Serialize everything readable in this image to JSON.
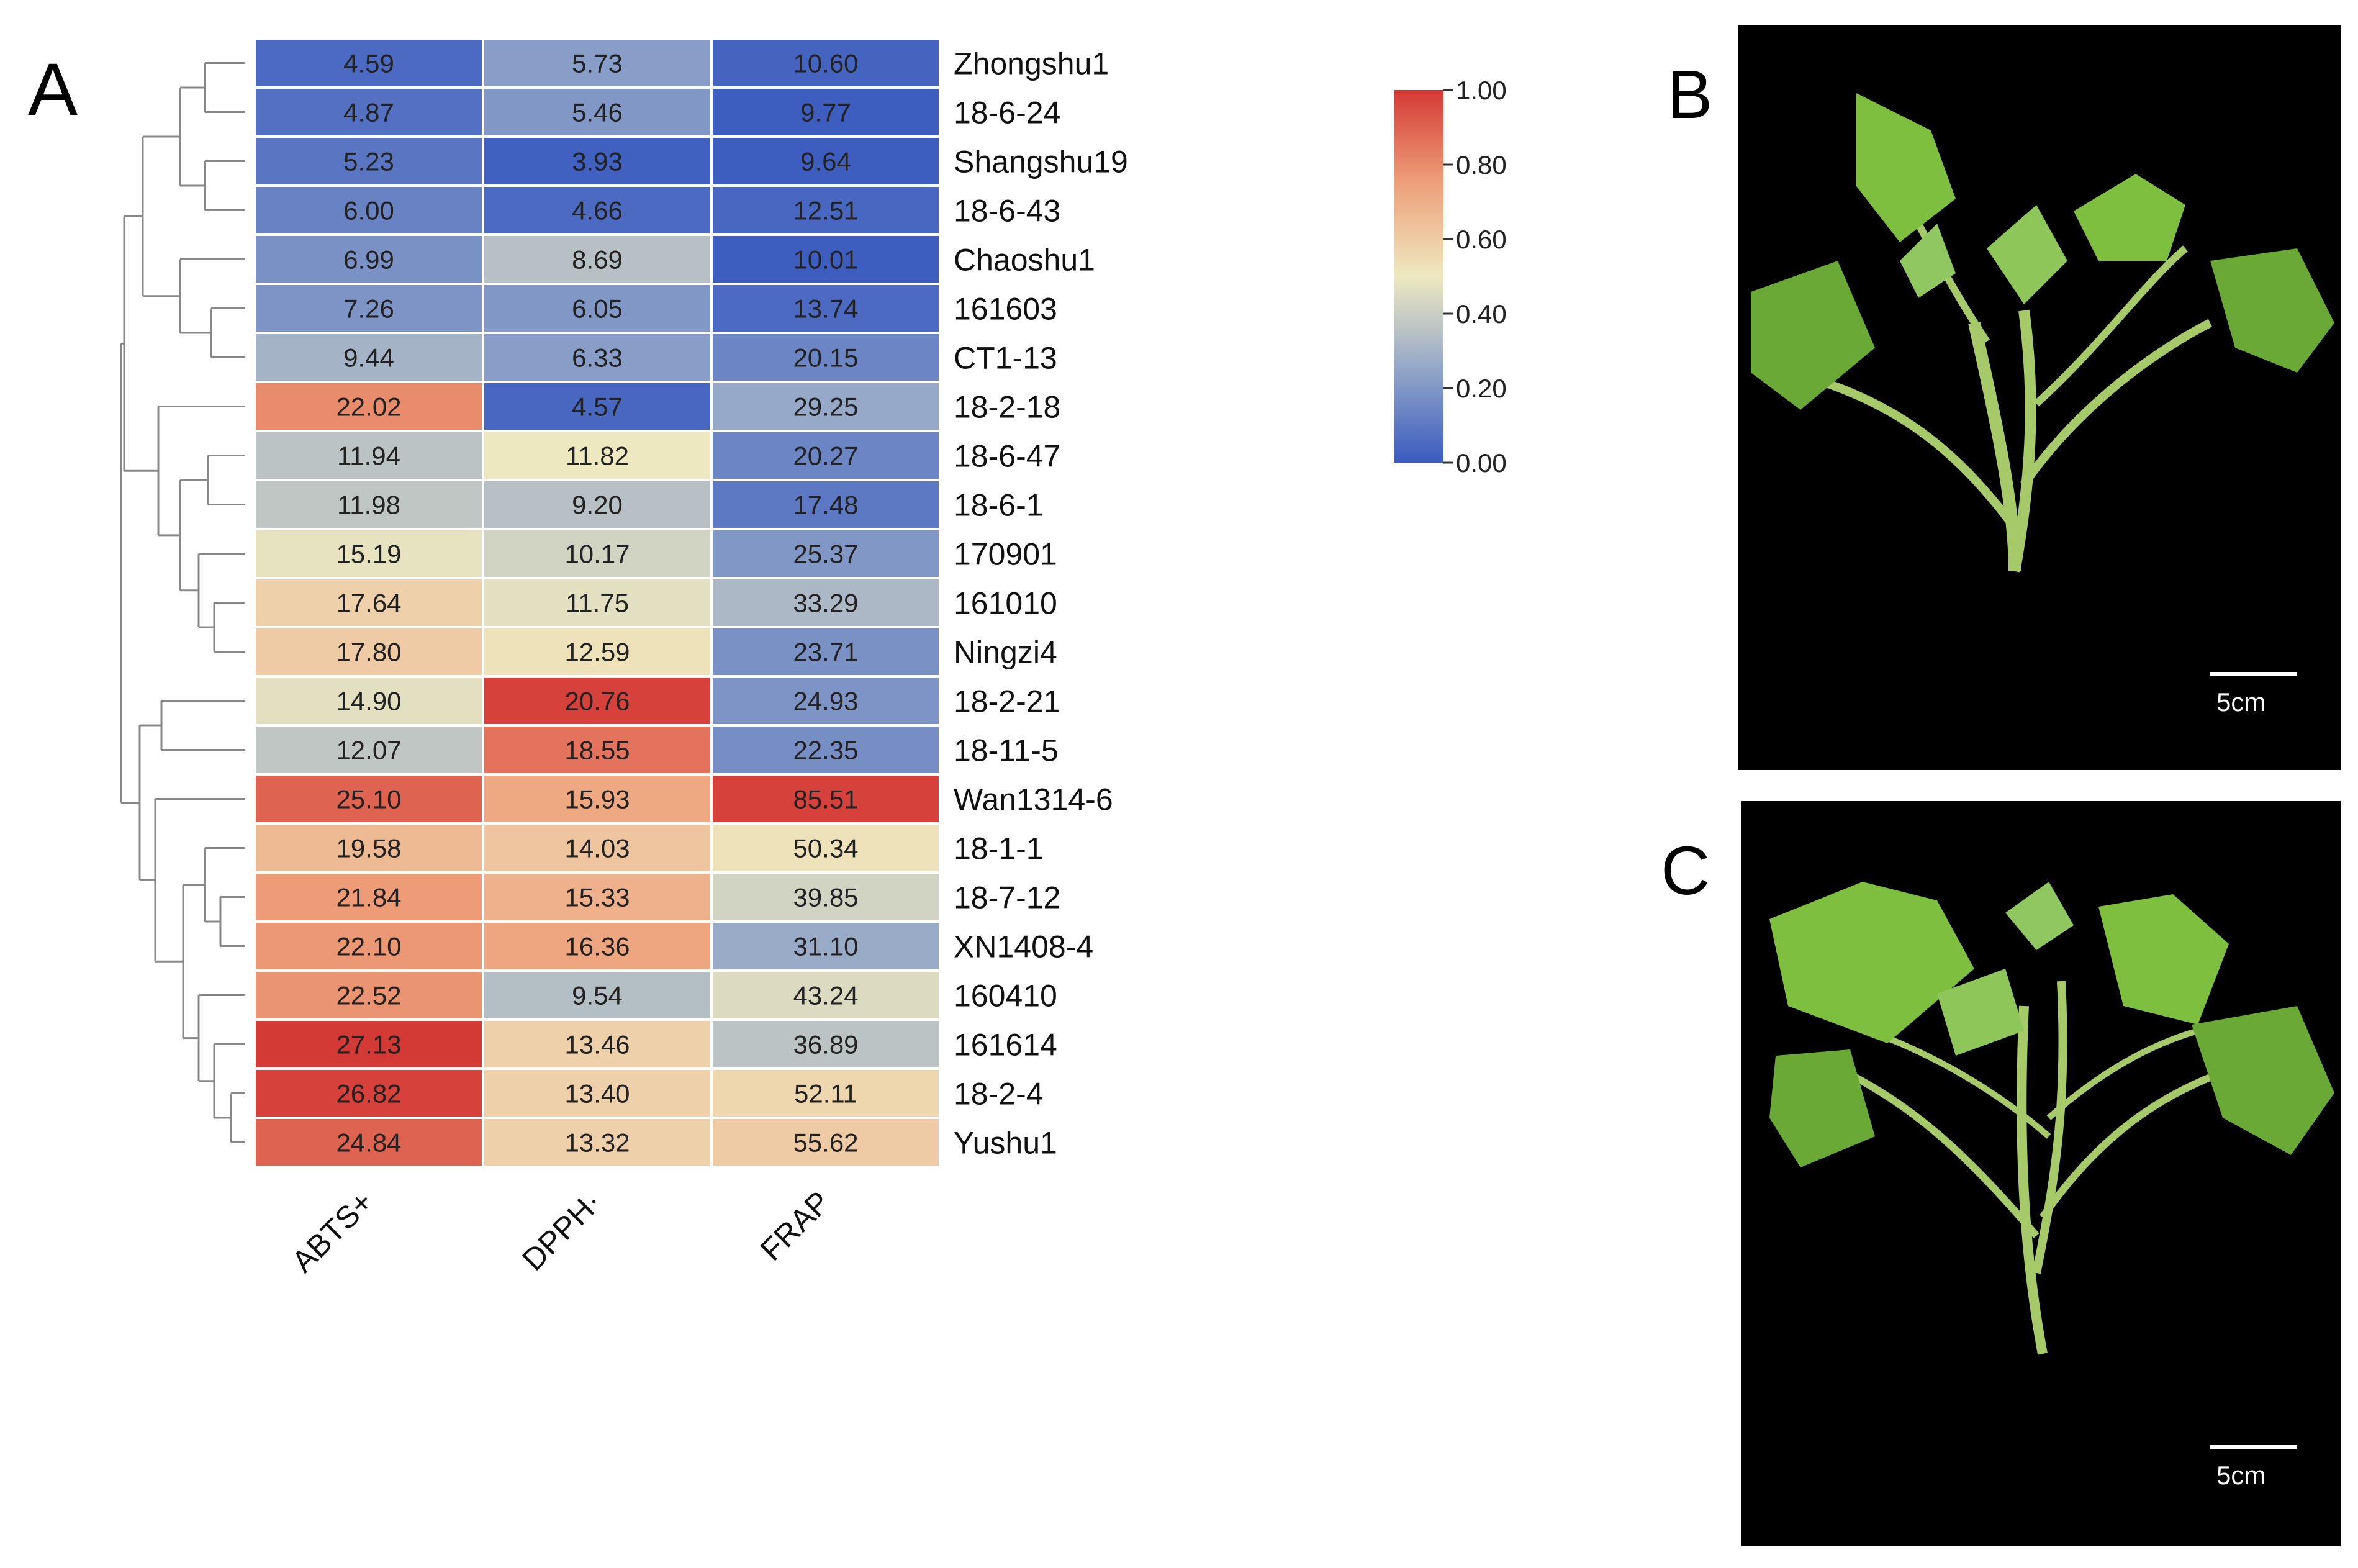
{
  "panels": {
    "a": "A",
    "b": "B",
    "c": "C"
  },
  "colors": {
    "low": "#3a5bbf",
    "mid_low": "#93a6c8",
    "mid": "#eee8c0",
    "mid_high": "#eea07a",
    "high": "#d43a35",
    "grid": "#ffffff",
    "photo_bg": "#000000",
    "leaf": "#7fbf3f",
    "stem": "#a6c96a"
  },
  "chart_data": {
    "type": "heatmap",
    "title": "",
    "columns": [
      "ABTS+",
      "DPPH·",
      "FRAP"
    ],
    "rows": [
      "Zhongshu1",
      "18-6-24",
      "Shangshu19",
      "18-6-43",
      "Chaoshu1",
      "161603",
      "CT1-13",
      "18-2-18",
      "18-6-47",
      "18-6-1",
      "170901",
      "161010",
      "Ningzi4",
      "18-2-21",
      "18-11-5",
      "Wan1314-6",
      "18-1-1",
      "18-7-12",
      "XN1408-4",
      "160410",
      "161614",
      "18-2-4",
      "Yushu1"
    ],
    "labels": [
      [
        "4.59",
        "5.73",
        "10.60"
      ],
      [
        "4.87",
        "5.46",
        "9.77"
      ],
      [
        "5.23",
        "3.93",
        "9.64"
      ],
      [
        "6.00",
        "4.66",
        "12.51"
      ],
      [
        "6.99",
        "8.69",
        "10.01"
      ],
      [
        "7.26",
        "6.05",
        "13.74"
      ],
      [
        "9.44",
        "6.33",
        "20.15"
      ],
      [
        "22.02",
        "4.57",
        "29.25"
      ],
      [
        "11.94",
        "11.82",
        "20.27"
      ],
      [
        "11.98",
        "9.20",
        "17.48"
      ],
      [
        "15.19",
        "10.17",
        "25.37"
      ],
      [
        "17.64",
        "11.75",
        "33.29"
      ],
      [
        "17.80",
        "12.59",
        "23.71"
      ],
      [
        "14.90",
        "20.76",
        "24.93"
      ],
      [
        "12.07",
        "18.55",
        "22.35"
      ],
      [
        "25.10",
        "15.93",
        "85.51"
      ],
      [
        "19.58",
        "14.03",
        "50.34"
      ],
      [
        "21.84",
        "15.33",
        "39.85"
      ],
      [
        "22.10",
        "16.36",
        "31.10"
      ],
      [
        "22.52",
        "9.54",
        "43.24"
      ],
      [
        "27.13",
        "13.46",
        "36.89"
      ],
      [
        "26.82",
        "13.40",
        "52.11"
      ],
      [
        "24.84",
        "13.32",
        "55.62"
      ]
    ],
    "color_values": [
      [
        0.05,
        0.22,
        0.03
      ],
      [
        0.07,
        0.2,
        0.01
      ],
      [
        0.09,
        0.02,
        0.01
      ],
      [
        0.13,
        0.05,
        0.04
      ],
      [
        0.18,
        0.35,
        0.01
      ],
      [
        0.19,
        0.2,
        0.05
      ],
      [
        0.3,
        0.22,
        0.14
      ],
      [
        0.8,
        0.04,
        0.26
      ],
      [
        0.36,
        0.5,
        0.14
      ],
      [
        0.37,
        0.35,
        0.1
      ],
      [
        0.48,
        0.42,
        0.2
      ],
      [
        0.58,
        0.47,
        0.32
      ],
      [
        0.6,
        0.52,
        0.18
      ],
      [
        0.47,
        0.98,
        0.19
      ],
      [
        0.37,
        0.86,
        0.17
      ],
      [
        0.9,
        0.72,
        0.98
      ],
      [
        0.66,
        0.62,
        0.52
      ],
      [
        0.76,
        0.69,
        0.42
      ],
      [
        0.77,
        0.73,
        0.27
      ],
      [
        0.78,
        0.34,
        0.45
      ],
      [
        1.0,
        0.58,
        0.36
      ],
      [
        0.98,
        0.58,
        0.56
      ],
      [
        0.9,
        0.58,
        0.6
      ]
    ],
    "colorbar": {
      "range": [
        0.0,
        1.0
      ],
      "ticks": [
        "1.00",
        "0.80",
        "0.60",
        "0.40",
        "0.20",
        "0.00"
      ]
    }
  },
  "photos": {
    "b": {
      "scale_label": "5cm"
    },
    "c": {
      "scale_label": "5cm"
    }
  }
}
